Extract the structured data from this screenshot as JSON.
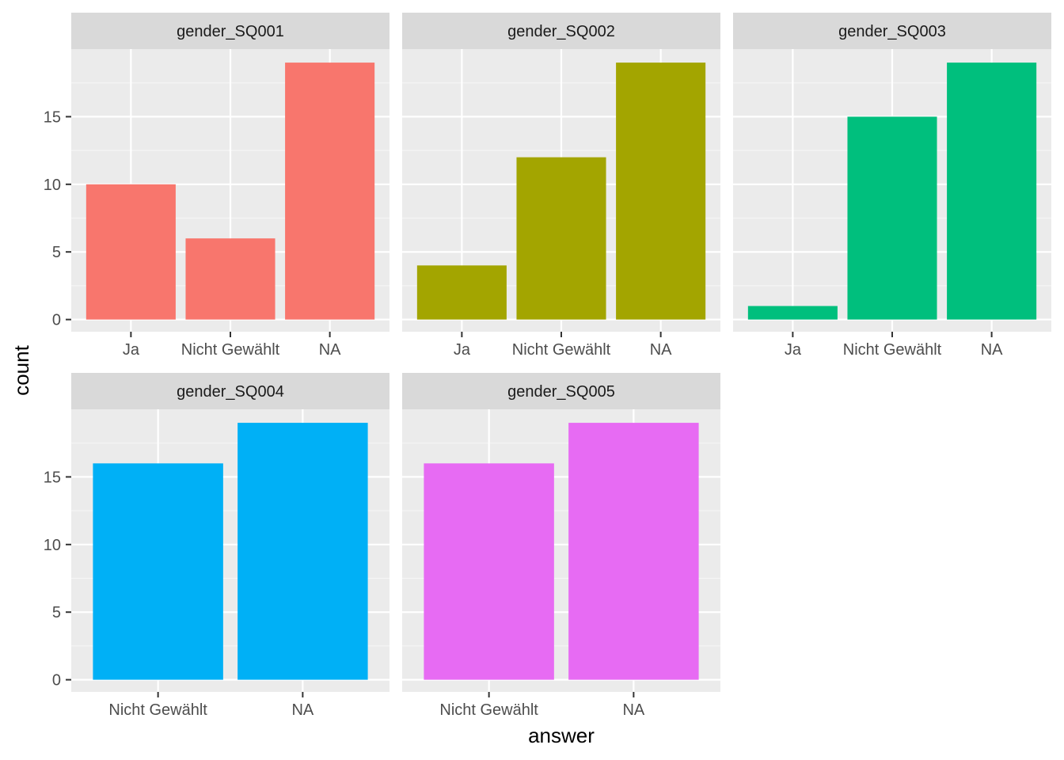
{
  "chart_data": {
    "type": "bar",
    "layout": "facet-wrap",
    "xlabel": "answer",
    "ylabel": "count",
    "ylim": [
      0,
      20
    ],
    "yticks": [
      0,
      5,
      10,
      15
    ],
    "grid": true,
    "legend": "none",
    "panels": [
      {
        "title": "gender_SQ001",
        "color": "#F8766D",
        "categories": [
          "Ja",
          "Nicht Gewählt",
          "NA"
        ],
        "values": [
          10,
          6,
          19
        ]
      },
      {
        "title": "gender_SQ002",
        "color": "#A3A500",
        "categories": [
          "Ja",
          "Nicht Gewählt",
          "NA"
        ],
        "values": [
          4,
          12,
          19
        ]
      },
      {
        "title": "gender_SQ003",
        "color": "#00BF7D",
        "categories": [
          "Ja",
          "Nicht Gewählt",
          "NA"
        ],
        "values": [
          1,
          15,
          19
        ]
      },
      {
        "title": "gender_SQ004",
        "color": "#00B0F6",
        "categories": [
          "Nicht Gewählt",
          "NA"
        ],
        "values": [
          16,
          19
        ]
      },
      {
        "title": "gender_SQ005",
        "color": "#E76BF3",
        "categories": [
          "Nicht Gewählt",
          "NA"
        ],
        "values": [
          16,
          19
        ]
      }
    ]
  }
}
